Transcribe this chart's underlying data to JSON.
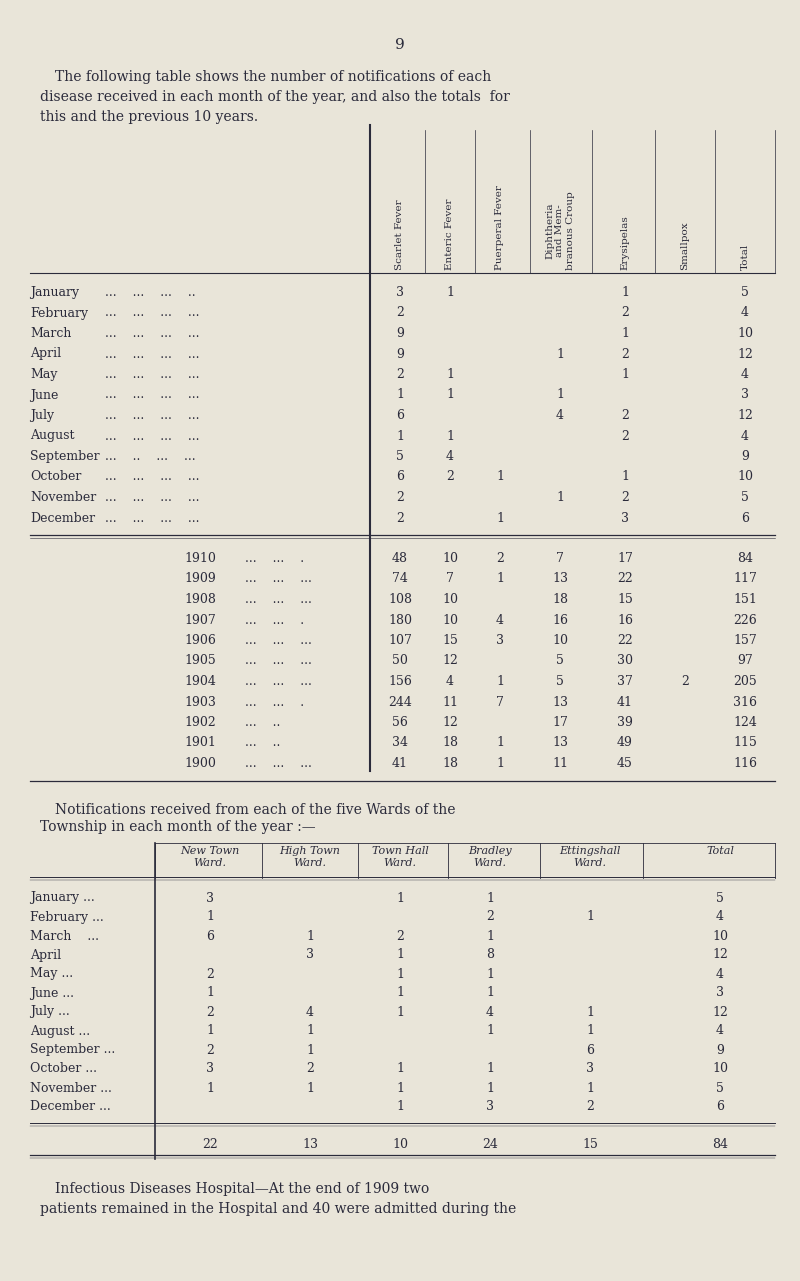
{
  "page_number": "9",
  "bg_color": "#e9e5d9",
  "text_color": "#2b2b3b",
  "intro_line1": "The following table shows the number of notifications of each",
  "intro_line2": "disease received in each month of the year, and also the totals  for",
  "intro_line3": "this and the previous 10 years.",
  "table1_col_headers": [
    "Scarlet Fever",
    "Enteric Fever",
    "Puerperal Fever",
    "Diphtheria\nand Mem-\nbranous Croup",
    "Erysipelas",
    "Smallpox",
    "Total"
  ],
  "table1_months": [
    "January",
    "February",
    "March",
    "April",
    "May",
    "June",
    "July",
    "August",
    "September",
    "October",
    "November",
    "December"
  ],
  "table1_month_dots": [
    "...    ...    ...    ..",
    "...    ...    ...    ...",
    "...    ...    ...    ...",
    "...    ...    ...    ...",
    "...    ...    ...    ...",
    "...    ...    ...    ...",
    "...    ...    ...    ...",
    "...    ...    ...    ...",
    "...    ..    ...    ...",
    "...    ...    ...    ...",
    "...    ...    ...    ...",
    "...    ...    ...    ..."
  ],
  "table1_month_data": [
    [
      "3",
      "1",
      "",
      "",
      "1",
      "",
      "5"
    ],
    [
      "2",
      "",
      "",
      "",
      "2",
      "",
      "4"
    ],
    [
      "9",
      "",
      "",
      "",
      "1",
      "",
      "10"
    ],
    [
      "9",
      "",
      "",
      "1",
      "2",
      "",
      "12"
    ],
    [
      "2",
      "1",
      "",
      "",
      "1",
      "",
      "4"
    ],
    [
      "1",
      "1",
      "",
      "1",
      "",
      "",
      "3"
    ],
    [
      "6",
      "",
      "",
      "4",
      "2",
      "",
      "12"
    ],
    [
      "1",
      "1",
      "",
      "",
      "2",
      "",
      "4"
    ],
    [
      "5",
      "4",
      "",
      "",
      "",
      "",
      "9"
    ],
    [
      "6",
      "2",
      "1",
      "",
      "1",
      "",
      "10"
    ],
    [
      "2",
      "",
      "",
      "1",
      "2",
      "",
      "5"
    ],
    [
      "2",
      "",
      "1",
      "",
      "3",
      "",
      "6"
    ]
  ],
  "table1_years": [
    "1910",
    "1909",
    "1908",
    "1907",
    "1906",
    "1905",
    "1904",
    "1903",
    "1902",
    "1901",
    "1900"
  ],
  "table1_year_dots": [
    "...    ...    .",
    "...    ...    ...",
    "...    ...    ...",
    "...    ...    .",
    "...    ...    ...",
    "...    ...    ...",
    "...    ...    ...",
    "...    ...    .",
    "...    ..",
    "...    ..",
    "...    ...    ..."
  ],
  "table1_year_data": [
    [
      "48",
      "10",
      "2",
      "7",
      "17",
      "",
      "84"
    ],
    [
      "74",
      "7",
      "1",
      "13",
      "22",
      "",
      "117"
    ],
    [
      "108",
      "10",
      "",
      "18",
      "15",
      "",
      "151"
    ],
    [
      "180",
      "10",
      "4",
      "16",
      "16",
      "",
      "226"
    ],
    [
      "107",
      "15",
      "3",
      "10",
      "22",
      "",
      "157"
    ],
    [
      "50",
      "12",
      "",
      "5",
      "30",
      "",
      "97"
    ],
    [
      "156",
      "4",
      "1",
      "5",
      "37",
      "2",
      "205"
    ],
    [
      "244",
      "11",
      "7",
      "13",
      "41",
      "",
      "316"
    ],
    [
      "56",
      "12",
      "",
      "17",
      "39",
      "",
      "124"
    ],
    [
      "34",
      "18",
      "1",
      "13",
      "49",
      "",
      "115"
    ],
    [
      "41",
      "18",
      "1",
      "11",
      "45",
      "",
      "116"
    ]
  ],
  "wards_line1": "Notifications received from each of the five Wards of the",
  "wards_line2": "Township in each month of the year :—",
  "table2_col_headers_line1": [
    "New Town",
    "High Town",
    "Town Hall",
    "Bradley",
    "Ettingshall",
    "Total"
  ],
  "table2_col_headers_line2": [
    "Ward.",
    "Ward.",
    "Ward.",
    "Ward.",
    "Ward.",
    ""
  ],
  "table2_months": [
    "January",
    "February",
    "March",
    "April",
    "May",
    "June",
    "July",
    "August",
    "September",
    "October",
    "November",
    "December"
  ],
  "table2_month_dots": [
    "...",
    "...",
    "   ...",
    "",
    "...",
    "...",
    "...",
    "...",
    "...",
    "...",
    "...",
    "..."
  ],
  "table2_month_data": [
    [
      "3",
      "",
      "1",
      "1",
      "",
      "5"
    ],
    [
      "1",
      "",
      "",
      "2",
      "1",
      "4"
    ],
    [
      "6",
      "1",
      "2",
      "1",
      "",
      "10"
    ],
    [
      "",
      "3",
      "1",
      "8",
      "",
      "12"
    ],
    [
      "2",
      "",
      "1",
      "1",
      "",
      "4"
    ],
    [
      "1",
      "",
      "1",
      "1",
      "",
      "3"
    ],
    [
      "2",
      "4",
      "1",
      "4",
      "1",
      "12"
    ],
    [
      "1",
      "1",
      "",
      "1",
      "1",
      "4"
    ],
    [
      "2",
      "1",
      "",
      "",
      "6",
      "9"
    ],
    [
      "3",
      "2",
      "1",
      "1",
      "3",
      "10"
    ],
    [
      "1",
      "1",
      "1",
      "1",
      "1",
      "5"
    ],
    [
      "",
      "",
      "1",
      "3",
      "2",
      "6"
    ]
  ],
  "table2_totals": [
    "22",
    "13",
    "10",
    "24",
    "15",
    "84"
  ],
  "footer_bold": "Infectious Diseases Hospital",
  "footer_line1_rest": "—At the end of 1909 two",
  "footer_line2": "patients remained in the Hospital and 40 were admitted during the"
}
